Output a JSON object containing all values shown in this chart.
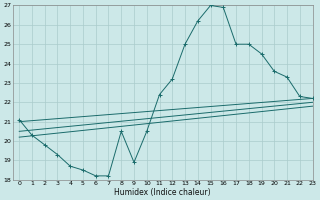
{
  "xlabel": "Humidex (Indice chaleur)",
  "ylabel": "",
  "background_color": "#cce8e8",
  "grid_color": "#aacccc",
  "line_color": "#1a6b6b",
  "xlim": [
    -0.5,
    23
  ],
  "ylim": [
    18,
    27
  ],
  "xticks": [
    0,
    1,
    2,
    3,
    4,
    5,
    6,
    7,
    8,
    9,
    10,
    11,
    12,
    13,
    14,
    15,
    16,
    17,
    18,
    19,
    20,
    21,
    22,
    23
  ],
  "yticks": [
    18,
    19,
    20,
    21,
    22,
    23,
    24,
    25,
    26,
    27
  ],
  "main_series": {
    "x": [
      0,
      1,
      2,
      3,
      4,
      5,
      6,
      7,
      8,
      9,
      10,
      11,
      12,
      13,
      14,
      15,
      16,
      17,
      18,
      19,
      20,
      21,
      22,
      23
    ],
    "y": [
      21.1,
      20.3,
      19.8,
      19.3,
      18.7,
      18.5,
      18.2,
      18.2,
      20.5,
      18.9,
      20.5,
      22.4,
      23.2,
      25.0,
      26.2,
      27.0,
      26.9,
      25.0,
      25.0,
      24.5,
      23.6,
      23.3,
      22.3,
      22.2
    ]
  },
  "straight_lines": [
    {
      "x0": 0,
      "y0": 21.0,
      "x1": 23,
      "y1": 22.2
    },
    {
      "x0": 0,
      "y0": 20.5,
      "x1": 23,
      "y1": 22.0
    },
    {
      "x0": 0,
      "y0": 20.2,
      "x1": 23,
      "y1": 21.8
    }
  ]
}
